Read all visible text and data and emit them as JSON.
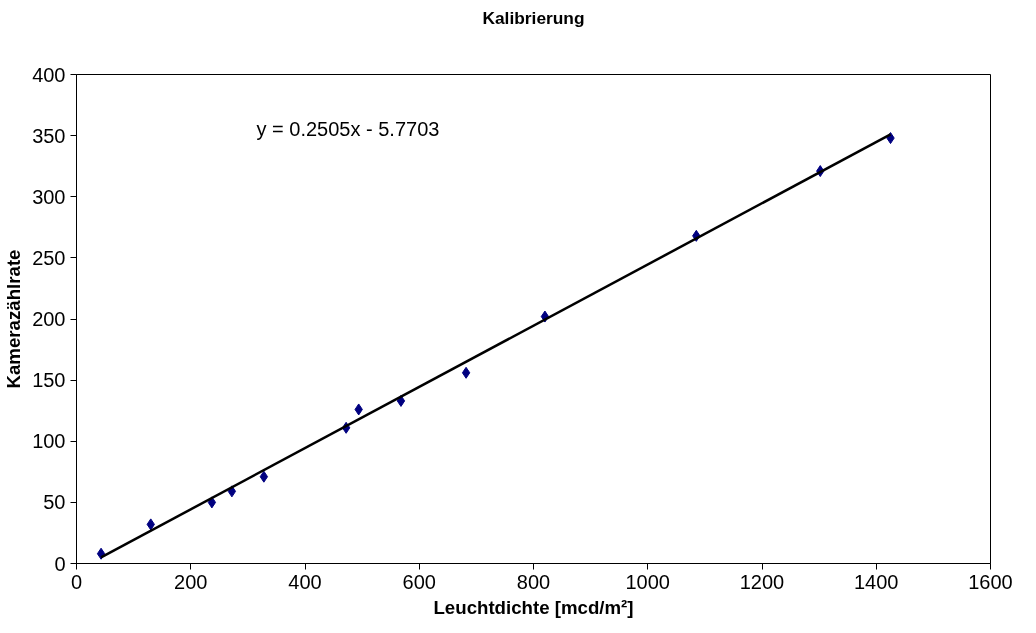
{
  "chart_data": {
    "type": "scatter",
    "title": "Kalibrierung",
    "xlabel": "Leuchtdichte [mcd/m²]",
    "ylabel": "Kamerazählrate",
    "annotations": [
      "y = 0.2505x - 5.7703"
    ],
    "series": [
      {
        "color": "#000080",
        "marker": "diamond",
        "x": [
          43,
          130,
          237,
          272,
          328,
          472,
          494,
          568,
          682,
          820,
          1085,
          1302,
          1425
        ],
        "values": [
          8,
          32,
          50,
          59,
          71,
          111,
          126,
          133,
          156,
          202,
          268,
          321,
          348
        ]
      },
      {
        "type": "line",
        "color": "#000000",
        "line_style": "solid",
        "x": [
          43,
          1425
        ],
        "values": [
          5,
          351
        ]
      }
    ],
    "xlim": [
      0,
      1600
    ],
    "xticks": [
      0,
      200,
      400,
      600,
      800,
      1000,
      1200,
      1400,
      1600
    ],
    "ylim": [
      0,
      400
    ],
    "yticks": [
      0,
      50,
      100,
      150,
      200,
      250,
      300,
      350,
      400
    ],
    "grid": false
  }
}
